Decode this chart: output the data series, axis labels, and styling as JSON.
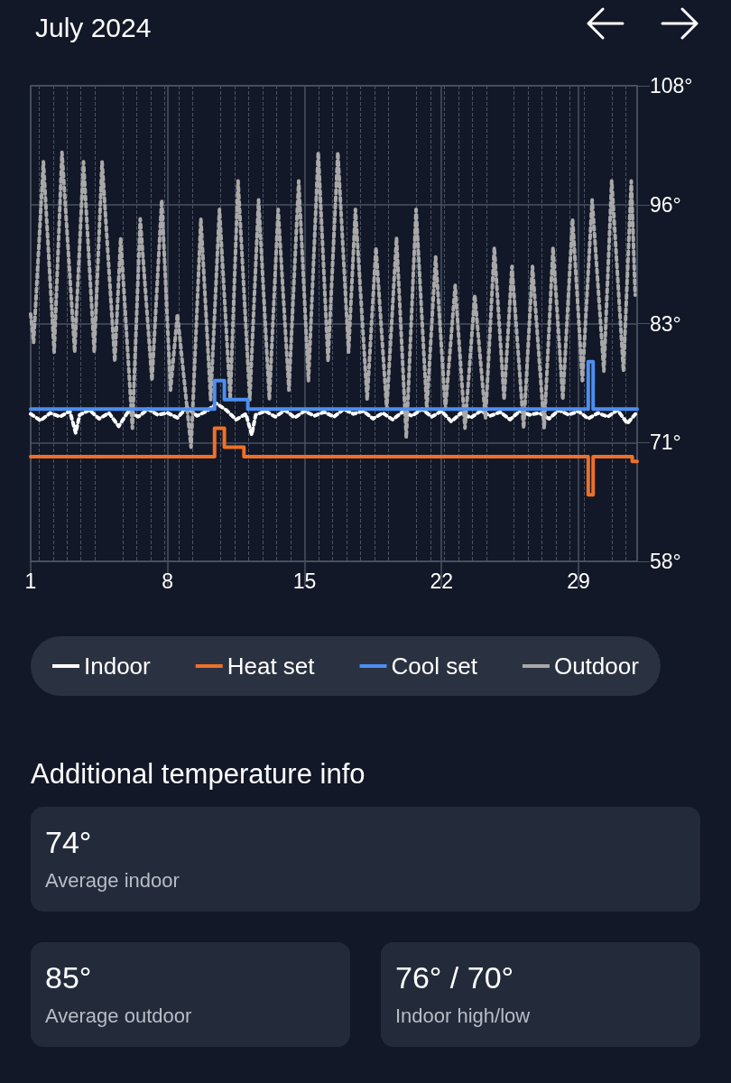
{
  "chart_data": [
    {
      "type": "line",
      "title": "July 2024",
      "xlim": [
        1,
        32
      ],
      "xticks": [
        1,
        8,
        15,
        22,
        29
      ],
      "ylim": [
        58,
        108
      ],
      "yticks": [
        {
          "value": 58,
          "label": "58°"
        },
        {
          "value": 70.5,
          "label": "71°"
        },
        {
          "value": 83,
          "label": "83°"
        },
        {
          "value": 95.5,
          "label": "96°"
        },
        {
          "value": 108,
          "label": "108°"
        }
      ],
      "grid": true,
      "legend": "bottom",
      "marker": "none",
      "series": [
        {
          "name": "Indoor",
          "color": "#ffffff",
          "line_style": "dotted",
          "x": [
            1,
            1.5,
            2,
            2.5,
            3,
            3.3,
            3.5,
            4,
            4.5,
            5,
            5.5,
            6,
            6.5,
            7,
            7.5,
            8,
            8.5,
            9,
            9.5,
            10,
            10.5,
            11,
            11.5,
            12,
            12.3,
            12.5,
            13,
            13.5,
            14,
            14.5,
            15,
            15.5,
            16,
            16.5,
            17,
            17.5,
            18,
            18.5,
            19,
            19.5,
            20,
            20.5,
            21,
            21.5,
            22,
            22.5,
            23,
            23.5,
            24,
            24.5,
            25,
            25.5,
            26,
            26.5,
            27,
            27.5,
            28,
            28.5,
            29,
            29.5,
            30,
            30.5,
            31,
            31.5,
            32
          ],
          "values": [
            73.5,
            72.8,
            73.6,
            73.2,
            73.8,
            71.5,
            73.4,
            73.9,
            73,
            73.6,
            72.2,
            73.8,
            73.2,
            74,
            73.4,
            73.6,
            73.1,
            74.2,
            73.3,
            73.8,
            74.6,
            73.9,
            72.9,
            73.5,
            71.3,
            73.4,
            73.8,
            73.2,
            73.9,
            73.1,
            73.8,
            73.3,
            73.7,
            73.2,
            74,
            73.5,
            73.8,
            73,
            73.6,
            72.9,
            73.7,
            73.3,
            74,
            73.2,
            73.8,
            72.7,
            73.6,
            73.1,
            73.8,
            73.3,
            73.7,
            72.9,
            73.8,
            73.4,
            73.6,
            73,
            73.9,
            73.4,
            73.8,
            73,
            73.6,
            73.2,
            73.9,
            72.5,
            73.7
          ]
        },
        {
          "name": "Heat set",
          "type": "step",
          "color": "#ee7028",
          "line_style": "solid",
          "x": [
            1,
            10.4,
            10.9,
            11.9,
            29.5,
            29.75,
            31.75,
            32
          ],
          "values": [
            69,
            72,
            70,
            69,
            65,
            69,
            68.5,
            68.5
          ]
        },
        {
          "name": "Cool set",
          "type": "step",
          "color": "#4c8ef2",
          "line_style": "solid",
          "x": [
            1,
            10.4,
            10.9,
            12.1,
            29.5,
            29.75,
            32
          ],
          "values": [
            74,
            77,
            75,
            74,
            79,
            74,
            74
          ]
        },
        {
          "name": "Outdoor",
          "color": "#a8a8a8",
          "line_style": "dotted",
          "x": [
            1,
            1.15,
            1.65,
            2.2,
            2.6,
            3.25,
            3.7,
            4.25,
            4.65,
            5.3,
            5.6,
            6.2,
            6.6,
            7.2,
            7.7,
            8.15,
            8.5,
            9.2,
            9.7,
            10.2,
            10.65,
            11.2,
            11.6,
            12.2,
            12.65,
            13.2,
            13.65,
            14.2,
            14.7,
            15.2,
            15.7,
            16.2,
            16.7,
            17.25,
            17.6,
            18.2,
            18.65,
            19.2,
            19.7,
            20.2,
            20.7,
            21.25,
            21.7,
            22.2,
            22.7,
            23.2,
            23.7,
            24.25,
            24.7,
            25.2,
            25.6,
            26.2,
            26.65,
            27.25,
            27.7,
            28.2,
            28.7,
            29.2,
            29.7,
            30.3,
            30.7,
            31.3,
            31.7,
            31.9
          ],
          "values": [
            84,
            81,
            100,
            80,
            101,
            80,
            100,
            80,
            100,
            79,
            92,
            72,
            94,
            77,
            96,
            76,
            84,
            70,
            94,
            75,
            95,
            75,
            98,
            75,
            96,
            75,
            95,
            76,
            98,
            77,
            101,
            79,
            101,
            80,
            95,
            75,
            91,
            74,
            92,
            71,
            95,
            74,
            90,
            74,
            87,
            72,
            86,
            73,
            91,
            75,
            89,
            72,
            89,
            72,
            91,
            75,
            94,
            77,
            96,
            78,
            98,
            78,
            98,
            86
          ]
        }
      ]
    },
    {
      "type": "other",
      "title": "Additional temperature info",
      "annotations": [
        "74°",
        "Average indoor",
        "85°",
        "Average outdoor",
        "76° / 70°",
        "Indoor high/low"
      ]
    }
  ]
}
